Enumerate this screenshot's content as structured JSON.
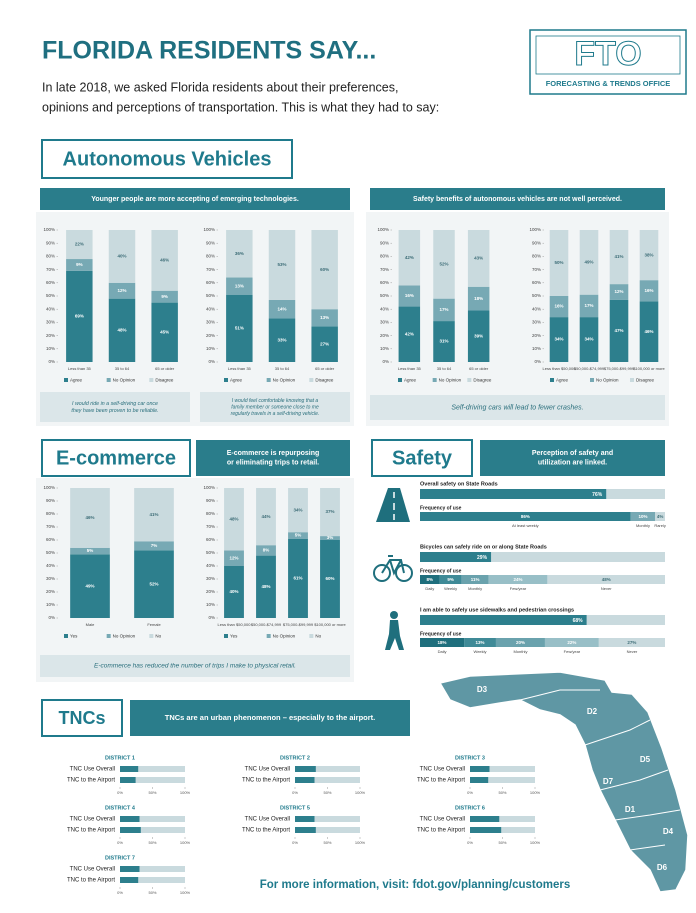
{
  "header": {
    "title": "FLORIDA RESIDENTS SAY...",
    "subtitle_lines": [
      "In late 2018, we asked Florida residents about their preferences,",
      "opinions and perceptions of transportation. This is what they had to say:"
    ]
  },
  "logo": {
    "mark": "FTO",
    "text": "FORECASTING & TRENDS OFFICE"
  },
  "percent_lim": [
    0,
    100
  ],
  "percent_ticks": [
    {
      "value": 0,
      "label": "0%"
    },
    {
      "value": 10,
      "label": "10%"
    },
    {
      "value": 20,
      "label": "20%"
    },
    {
      "value": 30,
      "label": "30%"
    },
    {
      "value": 40,
      "label": "40%"
    },
    {
      "value": 50,
      "label": "50%"
    },
    {
      "value": 60,
      "label": "60%"
    },
    {
      "value": 70,
      "label": "70%"
    },
    {
      "value": 80,
      "label": "80%"
    },
    {
      "value": 90,
      "label": "90%"
    },
    {
      "value": 100,
      "label": "100%"
    }
  ],
  "av": {
    "heading": "Autonomous Vehicles",
    "banners": [
      "Younger people are more accepting of emerging technologies.",
      "Safety benefits of autonomous vehicles are not well perceived."
    ],
    "charts": [
      {
        "type": "stacked_bar",
        "categories": [
          "Less than 35",
          "35 to 64",
          "65 or older"
        ],
        "series": [
          {
            "name": "Agree",
            "color": "#2d7f8d",
            "values": [
              69,
              48,
              45
            ],
            "value_labels": [
              "69%",
              "48%",
              "45%"
            ]
          },
          {
            "name": "No Opinion",
            "color": "#77a9b4",
            "values": [
              9,
              12,
              9
            ],
            "value_labels": [
              "9%",
              "12%",
              "9%"
            ]
          },
          {
            "name": "Disagree",
            "color": "#c9dade",
            "values": [
              22,
              40,
              46
            ],
            "value_labels": [
              "22%",
              "40%",
              "46%"
            ]
          }
        ]
      },
      {
        "type": "stacked_bar",
        "categories": [
          "Less than 35",
          "35 to 64",
          "65 or older"
        ],
        "series": [
          {
            "name": "Agree",
            "color": "#2d7f8d",
            "values": [
              51,
              33,
              27
            ],
            "value_labels": [
              "51%",
              "33%",
              "27%"
            ]
          },
          {
            "name": "No Opinion",
            "color": "#77a9b4",
            "values": [
              13,
              14,
              13
            ],
            "value_labels": [
              "13%",
              "14%",
              "13%"
            ]
          },
          {
            "name": "Disagree",
            "color": "#c9dade",
            "values": [
              36,
              53,
              60
            ],
            "value_labels": [
              "36%",
              "53%",
              "60%"
            ]
          }
        ]
      },
      {
        "type": "stacked_bar",
        "categories": [
          "Less than 35",
          "35 to 64",
          "65 or older"
        ],
        "series": [
          {
            "name": "Agree",
            "color": "#2d7f8d",
            "values": [
              42,
              31,
              39
            ],
            "value_labels": [
              "42%",
              "31%",
              "39%"
            ]
          },
          {
            "name": "No Opinion",
            "color": "#77a9b4",
            "values": [
              16,
              17,
              18
            ],
            "value_labels": [
              "16%",
              "17%",
              "18%"
            ]
          },
          {
            "name": "Disagree",
            "color": "#c9dade",
            "values": [
              42,
              52,
              43
            ],
            "value_labels": [
              "42%",
              "52%",
              "43%"
            ]
          }
        ]
      },
      {
        "type": "stacked_bar",
        "categories": [
          "Less than $50,000",
          "$50,000-$74,999",
          "$75,000-$99,999",
          "$100,000 or more"
        ],
        "series": [
          {
            "name": "Agree",
            "color": "#2d7f8d",
            "values": [
              34,
              34,
              47,
              46
            ],
            "value_labels": [
              "34%",
              "34%",
              "47%",
              "46%"
            ]
          },
          {
            "name": "No Opinion",
            "color": "#77a9b4",
            "values": [
              16,
              17,
              12,
              16
            ],
            "value_labels": [
              "16%",
              "17%",
              "12%",
              "16%"
            ]
          },
          {
            "name": "Disagree",
            "color": "#c9dade",
            "values": [
              50,
              49,
              41,
              38
            ],
            "value_labels": [
              "50%",
              "49%",
              "41%",
              "38%"
            ]
          }
        ]
      }
    ],
    "quotes": [
      {
        "lines": [
          "I would ride in a self-driving car once",
          "they have been proven to be reliable."
        ]
      },
      {
        "lines": [
          "I would feel comfortable knowing that a",
          "family member or someone close to me",
          "regularly travels in a self-driving vehicle."
        ]
      },
      {
        "lines": [
          "Self-driving cars will lead to fewer crashes."
        ]
      }
    ]
  },
  "ecommerce": {
    "heading": "E-commerce",
    "banner_lines": [
      "E-commerce is repurposing",
      "or eliminating trips to retail."
    ],
    "charts": [
      {
        "type": "stacked_bar",
        "categories": [
          "Male",
          "Female"
        ],
        "series": [
          {
            "name": "Yes",
            "color": "#2d7f8d",
            "values": [
              49,
              52
            ],
            "value_labels": [
              "49%",
              "52%"
            ]
          },
          {
            "name": "No Opinion",
            "color": "#77a9b4",
            "values": [
              5,
              7
            ],
            "value_labels": [
              "5%",
              "7%"
            ]
          },
          {
            "name": "No",
            "color": "#c9dade",
            "values": [
              46,
              41
            ],
            "value_labels": [
              "46%",
              "41%"
            ]
          }
        ]
      },
      {
        "type": "stacked_bar",
        "categories": [
          "Less than $50,000",
          "$50,000-$74,999",
          "$75,000-$99,999",
          "$100,000 or more"
        ],
        "series": [
          {
            "name": "Yes",
            "color": "#2d7f8d",
            "values": [
              40,
              48,
              61,
              60
            ],
            "value_labels": [
              "40%",
              "48%",
              "61%",
              "60%"
            ]
          },
          {
            "name": "No Opinion",
            "color": "#77a9b4",
            "values": [
              12,
              8,
              5,
              3
            ],
            "value_labels": [
              "12%",
              "8%",
              "5%",
              "3%"
            ]
          },
          {
            "name": "No",
            "color": "#c9dade",
            "values": [
              48,
              44,
              34,
              37
            ],
            "value_labels": [
              "48%",
              "44%",
              "34%",
              "37%"
            ]
          }
        ]
      }
    ],
    "quote": "E-commerce has reduced the number of trips I make to physical retail."
  },
  "safety": {
    "heading": "Safety",
    "banner_lines": [
      "Perception of safety and",
      "utilization are linked."
    ],
    "frequency_label": "Frequency of use",
    "rows": [
      {
        "statement": "Overall safety on State Roads",
        "value": 76,
        "value_label": "76%",
        "frequency": {
          "labels": [
            "At least weekly",
            "Monthly",
            "Rarely"
          ],
          "values": [
            86,
            10,
            4
          ],
          "value_labels": [
            "86%",
            "10%",
            "4%"
          ],
          "colors": [
            "#2d7f8d",
            "#77a9b4",
            "#c9dade"
          ]
        }
      },
      {
        "statement": "Bicycles can safely ride on or along State Roads",
        "value": 29,
        "value_label": "29%",
        "frequency": {
          "labels": [
            "Daily",
            "Weekly",
            "Monthly",
            "Few/year",
            "Never"
          ],
          "values": [
            8,
            9,
            11,
            24,
            48
          ],
          "value_labels": [
            "8%",
            "9%",
            "11%",
            "24%",
            "48%"
          ],
          "colors": [
            "#1f6f7d",
            "#3f8a97",
            "#6aa2ad",
            "#98bfc7",
            "#c9dade"
          ]
        }
      },
      {
        "statement": "I am able to safely use sidewalks and pedestrian crossings",
        "value": 68,
        "value_label": "68%",
        "frequency": {
          "labels": [
            "Daily",
            "Weekly",
            "Monthly",
            "Few/year",
            "Never"
          ],
          "values": [
            18,
            13,
            20,
            22,
            27
          ],
          "value_labels": [
            "18%",
            "13%",
            "20%",
            "22%",
            "27%"
          ],
          "colors": [
            "#1f6f7d",
            "#3f8a97",
            "#6aa2ad",
            "#98bfc7",
            "#c9dade"
          ]
        }
      }
    ]
  },
  "tnc": {
    "heading": "TNCs",
    "banner": "TNCs are an urban phenomenon – especially to the airport.",
    "row_labels": [
      "TNC Use Overall",
      "TNC to the Airport"
    ],
    "axis_lim": [
      0,
      100
    ],
    "axis_ticks": [
      {
        "value": 0,
        "label": "0%"
      },
      {
        "value": 50,
        "label": "50%"
      },
      {
        "value": 100,
        "label": "100%"
      }
    ],
    "districts": [
      {
        "name": "DISTRICT 1",
        "values": [
          28,
          24
        ]
      },
      {
        "name": "DISTRICT 2",
        "values": [
          32,
          30
        ]
      },
      {
        "name": "DISTRICT 3",
        "values": [
          30,
          28
        ]
      },
      {
        "name": "DISTRICT 4",
        "values": [
          30,
          32
        ]
      },
      {
        "name": "DISTRICT 5",
        "values": [
          30,
          32
        ]
      },
      {
        "name": "DISTRICT 6",
        "values": [
          45,
          48
        ]
      },
      {
        "name": "DISTRICT 7",
        "values": [
          30,
          28
        ]
      }
    ]
  },
  "map": {
    "labels": [
      "D1",
      "D2",
      "D3",
      "D4",
      "D5",
      "D6",
      "D7"
    ]
  },
  "footer": "For more information, visit: fdot.gov/planning/customers"
}
